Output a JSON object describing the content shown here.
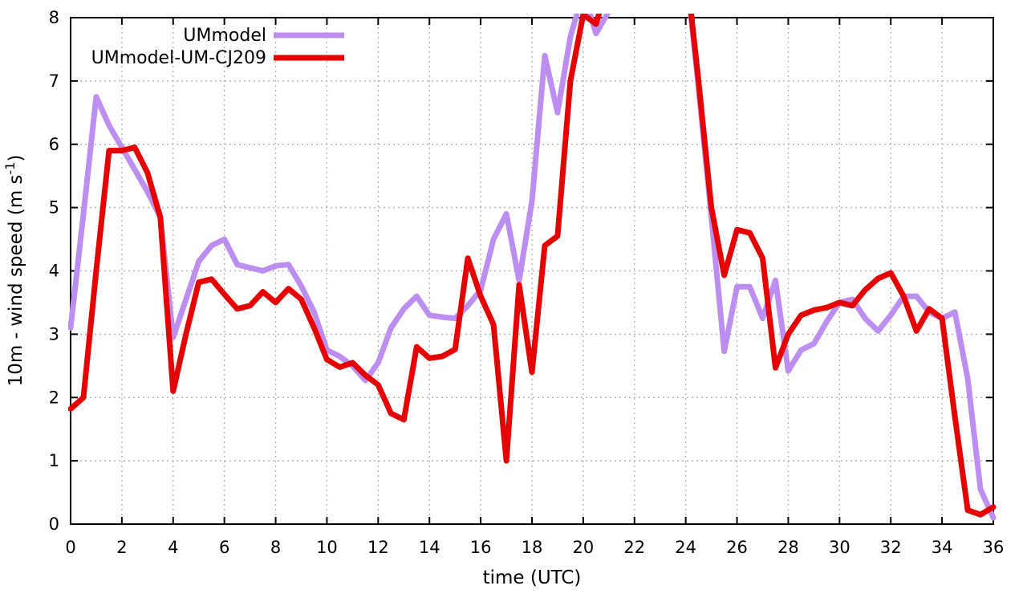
{
  "chart_data": {
    "type": "line",
    "title": "",
    "xlabel": "time (UTC)",
    "ylabel": "10m - wind speed (m s^-1)",
    "ylabel_parts": {
      "main": "10m - wind speed  (m s",
      "superscript": "-1",
      "close": ")"
    },
    "xlim": [
      0,
      36
    ],
    "ylim": [
      0,
      8
    ],
    "xticks": [
      0,
      2,
      4,
      6,
      8,
      10,
      12,
      14,
      16,
      18,
      20,
      22,
      24,
      26,
      28,
      30,
      32,
      34,
      36
    ],
    "yticks": [
      0,
      1,
      2,
      3,
      4,
      5,
      6,
      7,
      8
    ],
    "grid": "dotted",
    "legend_position": "top-left-inside",
    "x_start": 0,
    "x_step": 0.5,
    "series": [
      {
        "name": "UMmodel",
        "color": "#bd8ef2",
        "line_width": 7,
        "values": [
          3.1,
          4.9,
          6.75,
          6.3,
          5.95,
          5.6,
          5.25,
          4.85,
          2.95,
          3.55,
          4.15,
          4.4,
          4.5,
          4.1,
          4.05,
          4.0,
          4.08,
          4.1,
          3.76,
          3.35,
          2.75,
          2.65,
          2.5,
          2.27,
          2.55,
          3.1,
          3.4,
          3.6,
          3.3,
          3.27,
          3.25,
          3.45,
          3.7,
          4.5,
          4.9,
          3.85,
          5.1,
          7.4,
          6.5,
          7.7,
          8.4,
          7.75,
          8.1,
          9.0,
          9.3,
          9.3,
          9.3,
          9.3,
          8.8,
          6.9,
          4.85,
          2.73,
          3.75,
          3.75,
          3.25,
          3.85,
          2.42,
          2.75,
          2.85,
          3.2,
          3.5,
          3.55,
          3.25,
          3.05,
          3.3,
          3.6,
          3.6,
          3.35,
          3.25,
          3.35,
          2.3,
          0.55,
          0.1
        ]
      },
      {
        "name": "UMmodel-UM-CJ209",
        "color": "#e60000",
        "line_width": 7,
        "values": [
          1.82,
          2.0,
          4.0,
          5.9,
          5.9,
          5.95,
          5.55,
          4.85,
          2.1,
          3.0,
          3.82,
          3.87,
          3.63,
          3.4,
          3.45,
          3.67,
          3.5,
          3.72,
          3.55,
          3.1,
          2.6,
          2.48,
          2.55,
          2.35,
          2.2,
          1.75,
          1.65,
          2.8,
          2.62,
          2.65,
          2.76,
          4.2,
          3.6,
          3.15,
          1.0,
          3.78,
          2.4,
          4.4,
          4.55,
          7.0,
          8.05,
          7.9,
          8.6,
          9.3,
          9.3,
          9.3,
          9.3,
          9.3,
          8.85,
          7.0,
          5.0,
          3.93,
          4.65,
          4.6,
          4.2,
          2.47,
          3.0,
          3.3,
          3.38,
          3.42,
          3.5,
          3.45,
          3.7,
          3.88,
          3.97,
          3.6,
          3.05,
          3.4,
          3.25,
          1.7,
          0.22,
          0.15,
          0.27
        ]
      }
    ]
  },
  "colors": {
    "background": "#ffffff",
    "frame": "#000000",
    "grid": "#b4b4b4",
    "tick_text": "#000000"
  }
}
